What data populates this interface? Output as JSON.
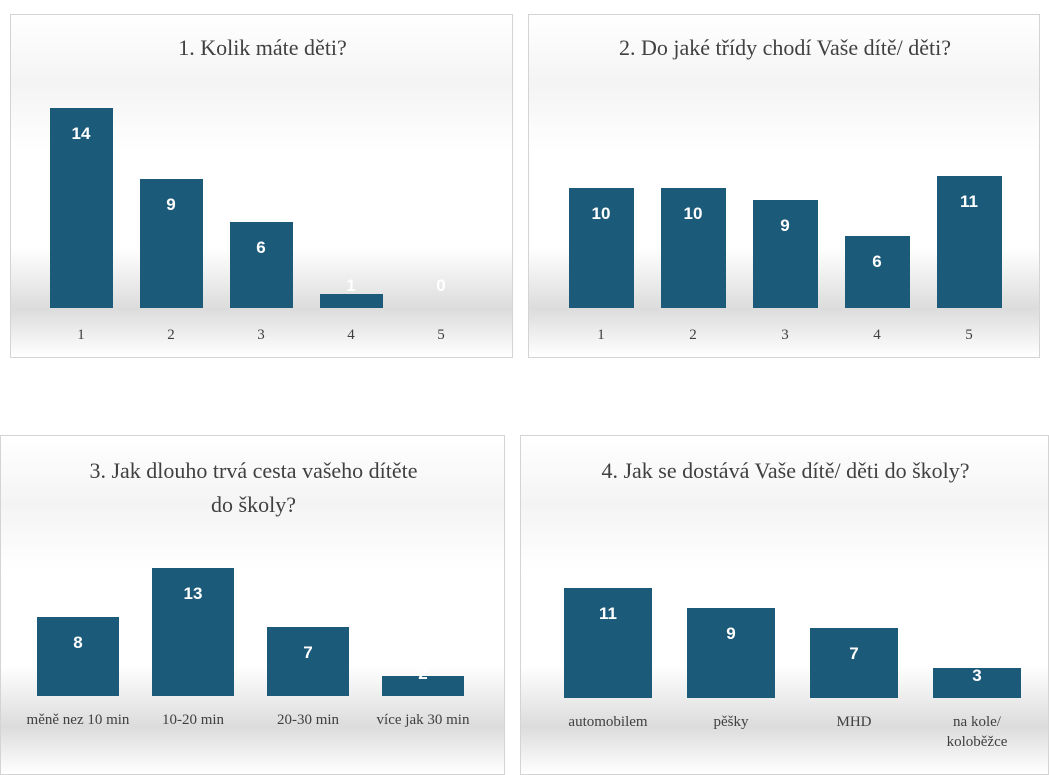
{
  "chart_data": [
    {
      "type": "bar",
      "title": "1. Kolik máte děti?",
      "categories": [
        "1",
        "2",
        "3",
        "4",
        "5"
      ],
      "values": [
        14,
        9,
        6,
        1,
        0
      ],
      "color": "#1c5a7a"
    },
    {
      "type": "bar",
      "title": "2. Do jaké třídy chodí Vaše dítě/ děti?",
      "categories": [
        "1",
        "2",
        "3",
        "4",
        "5"
      ],
      "values": [
        10,
        10,
        9,
        6,
        11
      ],
      "color": "#1c5a7a"
    },
    {
      "type": "bar",
      "title": "3. Jak dlouho trvá cesta vašeho dítěte do školy?",
      "categories": [
        "měně nez 10 min",
        "10-20 min",
        "20-30 min",
        "více jak 30 min"
      ],
      "values": [
        8,
        13,
        7,
        2
      ],
      "color": "#1c5a7a"
    },
    {
      "type": "bar",
      "title": "4. Jak se dostává Vaše dítě/ děti do školy?",
      "categories": [
        "automobilem",
        "pěšky",
        "MHD",
        "na kole/ koloběžce"
      ],
      "values": [
        11,
        9,
        7,
        3
      ],
      "color": "#1c5a7a"
    }
  ]
}
